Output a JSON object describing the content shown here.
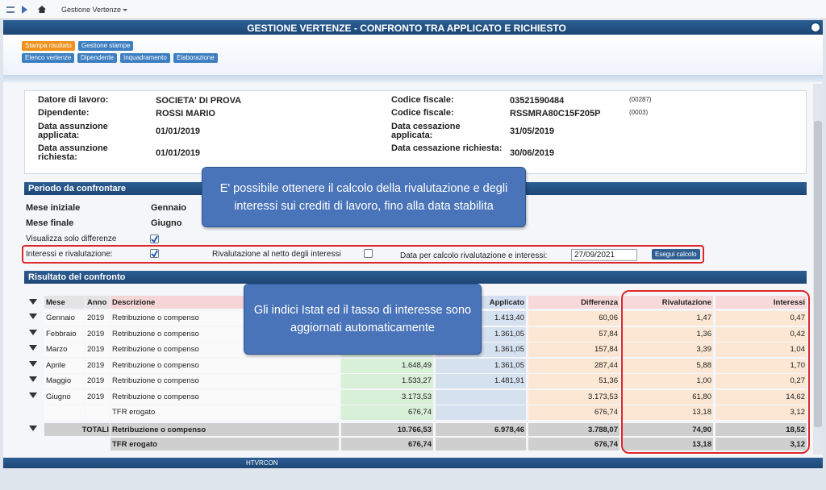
{
  "breadcrumb": "Gestione Vertenze",
  "title": "GESTIONE VERTENZE - CONFRONTO TRA APPLICATO E RICHIESTO",
  "toolbar": {
    "row1": [
      "Stampa risultato",
      "Gestione stampe"
    ],
    "row2": [
      "Elenco vertenze",
      "Dipendente",
      "Inquadramento",
      "Elaborazione"
    ]
  },
  "employer": {
    "rows": [
      {
        "label": "Datore di lavoro:",
        "value": "SOCIETA' DI PROVA",
        "label2": "Codice fiscale:",
        "value2": "03521590484",
        "code": "(00287)"
      },
      {
        "label": "Dipendente:",
        "value": "ROSSI MARIO",
        "label2": "Codice fiscale:",
        "value2": "RSSMRA80C15F205P",
        "code": "(0003)"
      },
      {
        "label": "Data assunzione applicata:",
        "value": "01/01/2019",
        "label2": "Data cessazione applicata:",
        "value2": "31/05/2019"
      },
      {
        "label": "Data assunzione richiesta:",
        "value": "01/01/2019",
        "label2": "Data cessazione richiesta:",
        "value2": "30/06/2019"
      }
    ]
  },
  "period": {
    "title": "Periodo da confrontare",
    "fields": [
      {
        "label": "Mese iniziale",
        "value": "Gennaio"
      },
      {
        "label": "Mese finale",
        "value": "Giugno"
      }
    ],
    "only_diff": {
      "label": "Visualizza solo differenze",
      "checked": true
    },
    "interest": {
      "label": "Interessi e rivalutazione:",
      "checked": true
    },
    "net": {
      "label": "Rivalutazione al netto degli interessi",
      "checked": false
    },
    "date_label": "Data per calcolo rivalutazione e interessi:",
    "date": "27/09/2021",
    "button": "Esegui calcolo"
  },
  "result": {
    "title": "Risultato del confronto",
    "headers": {
      "mese": "Mese",
      "anno": "Anno",
      "descrizione": "Descrizione",
      "applicato": "Applicato",
      "differenza": "Differenza",
      "rivalutazione": "Rivalutazione",
      "interessi": "Interessi"
    },
    "rows": [
      {
        "mese": "Gennaio",
        "anno": "2019",
        "descrizione": "Retribuzione o compenso",
        "applicato": "1.413,40",
        "differenza": "60,06",
        "rivalutazione": "1,47",
        "interessi": "0,47"
      },
      {
        "mese": "Febbraio",
        "anno": "2019",
        "descrizione": "Retribuzione o compenso",
        "applicato": "1.361,05",
        "differenza": "57,84",
        "rivalutazione": "1,36",
        "interessi": "0,42"
      },
      {
        "mese": "Marzo",
        "anno": "2019",
        "descrizione": "Retribuzione o compenso",
        "applicato": "1.361,05",
        "differenza": "157,84",
        "rivalutazione": "3,39",
        "interessi": "1,04"
      },
      {
        "mese": "Aprile",
        "anno": "2019",
        "descrizione": "Retribuzione o compenso",
        "richiesto": "1.648,49",
        "applicato": "1.361,05",
        "differenza": "287,44",
        "rivalutazione": "5,88",
        "interessi": "1,70"
      },
      {
        "mese": "Maggio",
        "anno": "2019",
        "descrizione": "Retribuzione o compenso",
        "richiesto": "1.533,27",
        "applicato": "1.481,91",
        "differenza": "51,36",
        "rivalutazione": "1,00",
        "interessi": "0,27"
      },
      {
        "mese": "Giugno",
        "anno": "2019",
        "descrizione": "Retribuzione o compenso",
        "richiesto": "3.173,53",
        "differenza": "3.173,53",
        "rivalutazione": "61,80",
        "interessi": "14,62"
      },
      {
        "descrizione": "TFR erogato",
        "richiesto": "676,74",
        "differenza": "676,74",
        "rivalutazione": "13,18",
        "interessi": "3,12"
      }
    ],
    "totals": [
      {
        "label": "TOTALI",
        "descrizione": "Retribuzione o compenso",
        "richiesto": "10.766,53",
        "applicato": "6.978,46",
        "differenza": "3.788,07",
        "rivalutazione": "74,90",
        "interessi": "18,52"
      },
      {
        "descrizione": "TFR erogato",
        "richiesto": "676,74",
        "differenza": "676,74",
        "rivalutazione": "13,18",
        "interessi": "3,12"
      }
    ]
  },
  "footer": "HTVRCON",
  "callouts": [
    "E' possibile ottenere il calcolo della rivalutazione e degli interessi sui crediti di lavoro, fino alla data stabilita",
    "Gli indici Istat ed il tasso di interesse sono aggiornati automaticamente"
  ]
}
